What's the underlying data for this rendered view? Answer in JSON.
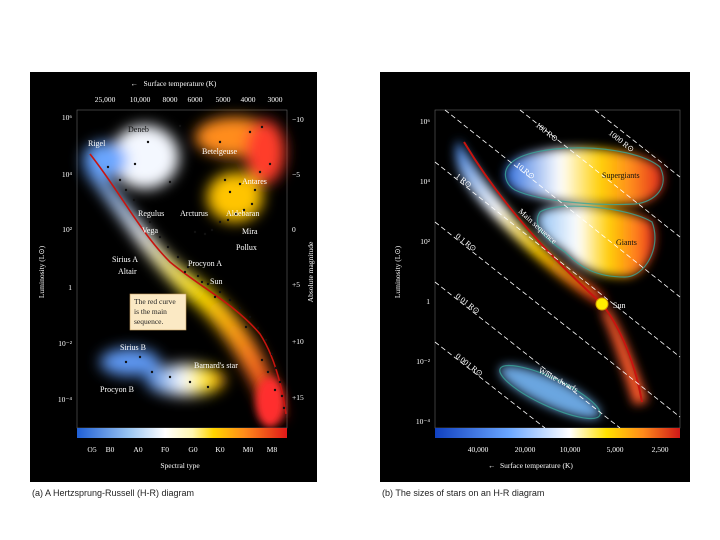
{
  "panel_a": {
    "caption": "(a) A Hertzsprung-Russell (H-R) diagram",
    "top_axis_title": "Surface temperature (K)",
    "top_ticks": [
      "25,000",
      "10,000",
      "8000",
      "6000",
      "5000",
      "4000",
      "3000"
    ],
    "left_axis_title": "Luminosity (L⊙)",
    "left_ticks": [
      "10⁶",
      "10⁴",
      "10²",
      "1",
      "10⁻²",
      "10⁻⁴"
    ],
    "right_axis_title": "Absolute magnitude",
    "right_ticks": [
      "−10",
      "−5",
      "0",
      "+5",
      "+10",
      "+15"
    ],
    "bottom_axis_title": "Spectral type",
    "spectral_types": [
      "O5",
      "B0",
      "A0",
      "F0",
      "G0",
      "K0",
      "M0",
      "M8"
    ],
    "star_labels": {
      "deneb": "Deneb",
      "rigel": "Rigel",
      "betelgeuse": "Betelgeuse",
      "antares": "Antares",
      "regulus": "Regulus",
      "arcturus": "Arcturus",
      "aldebaran": "Aldebaran",
      "vega": "Vega",
      "mira": "Mira",
      "pollux": "Pollux",
      "sirius_a": "Sirius A",
      "altair": "Altair",
      "procyon_a": "Procyon A",
      "sun": "Sun",
      "sirius_b": "Sirius B",
      "barnards": "Barnard's star",
      "procyon_b": "Procyon B"
    },
    "note_lines": [
      "The red curve",
      "is the main",
      "sequence."
    ]
  },
  "panel_b": {
    "caption": "(b) The sizes of stars on an H-R diagram",
    "left_axis_title": "Luminosity (L⊙)",
    "left_ticks": [
      "10⁶",
      "10⁴",
      "10²",
      "1",
      "10⁻²",
      "10⁻⁴"
    ],
    "bottom_ticks": [
      "40,000",
      "20,000",
      "10,000",
      "5,000",
      "2,500"
    ],
    "bottom_axis_title": "Surface temperature (K)",
    "radius_labels": [
      "1000 R⊙",
      "100 R⊙",
      "10 R⊙",
      "1 R⊙",
      "0.1 R⊙",
      "0.01 R⊙",
      "0.001 R⊙"
    ],
    "region_labels": {
      "supergiants": "Supergiants",
      "giants": "Giants",
      "main_sequence": "Main sequence",
      "white_dwarfs": "White dwarfs",
      "sun": "Sun"
    }
  }
}
